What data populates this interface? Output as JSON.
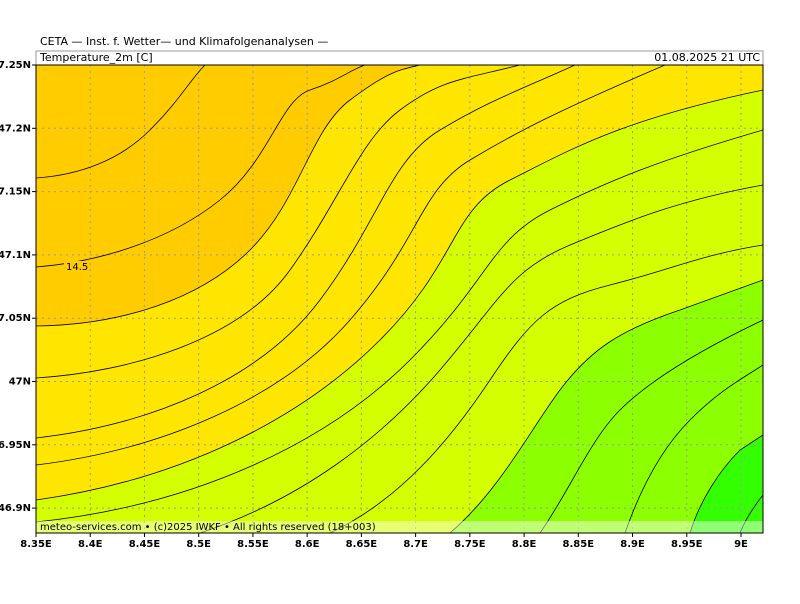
{
  "header": {
    "title": "CETA — Inst. f. Wetter— und Klimafolgenanalysen —"
  },
  "panel": {
    "variable": "Temperature_2m [C]",
    "datetime": "01.08.2025 21 UTC"
  },
  "axes": {
    "lat_labels": [
      "7.25N",
      "47.2N",
      "7.15N",
      "47.1N",
      "7.05N",
      "47N",
      "6.95N",
      "46.9N"
    ],
    "lon_labels": [
      "8.35E",
      "8.4E",
      "8.45E",
      "8.5E",
      "8.55E",
      "8.6E",
      "8.65E",
      "8.7E",
      "8.75E",
      "8.8E",
      "8.85E",
      "8.9E",
      "8.95E",
      "9E"
    ]
  },
  "contour_labels": [
    "14.5"
  ],
  "footer": "meteo-services.com • (c)2025 IWKF • All rights reserved (18+003)"
}
